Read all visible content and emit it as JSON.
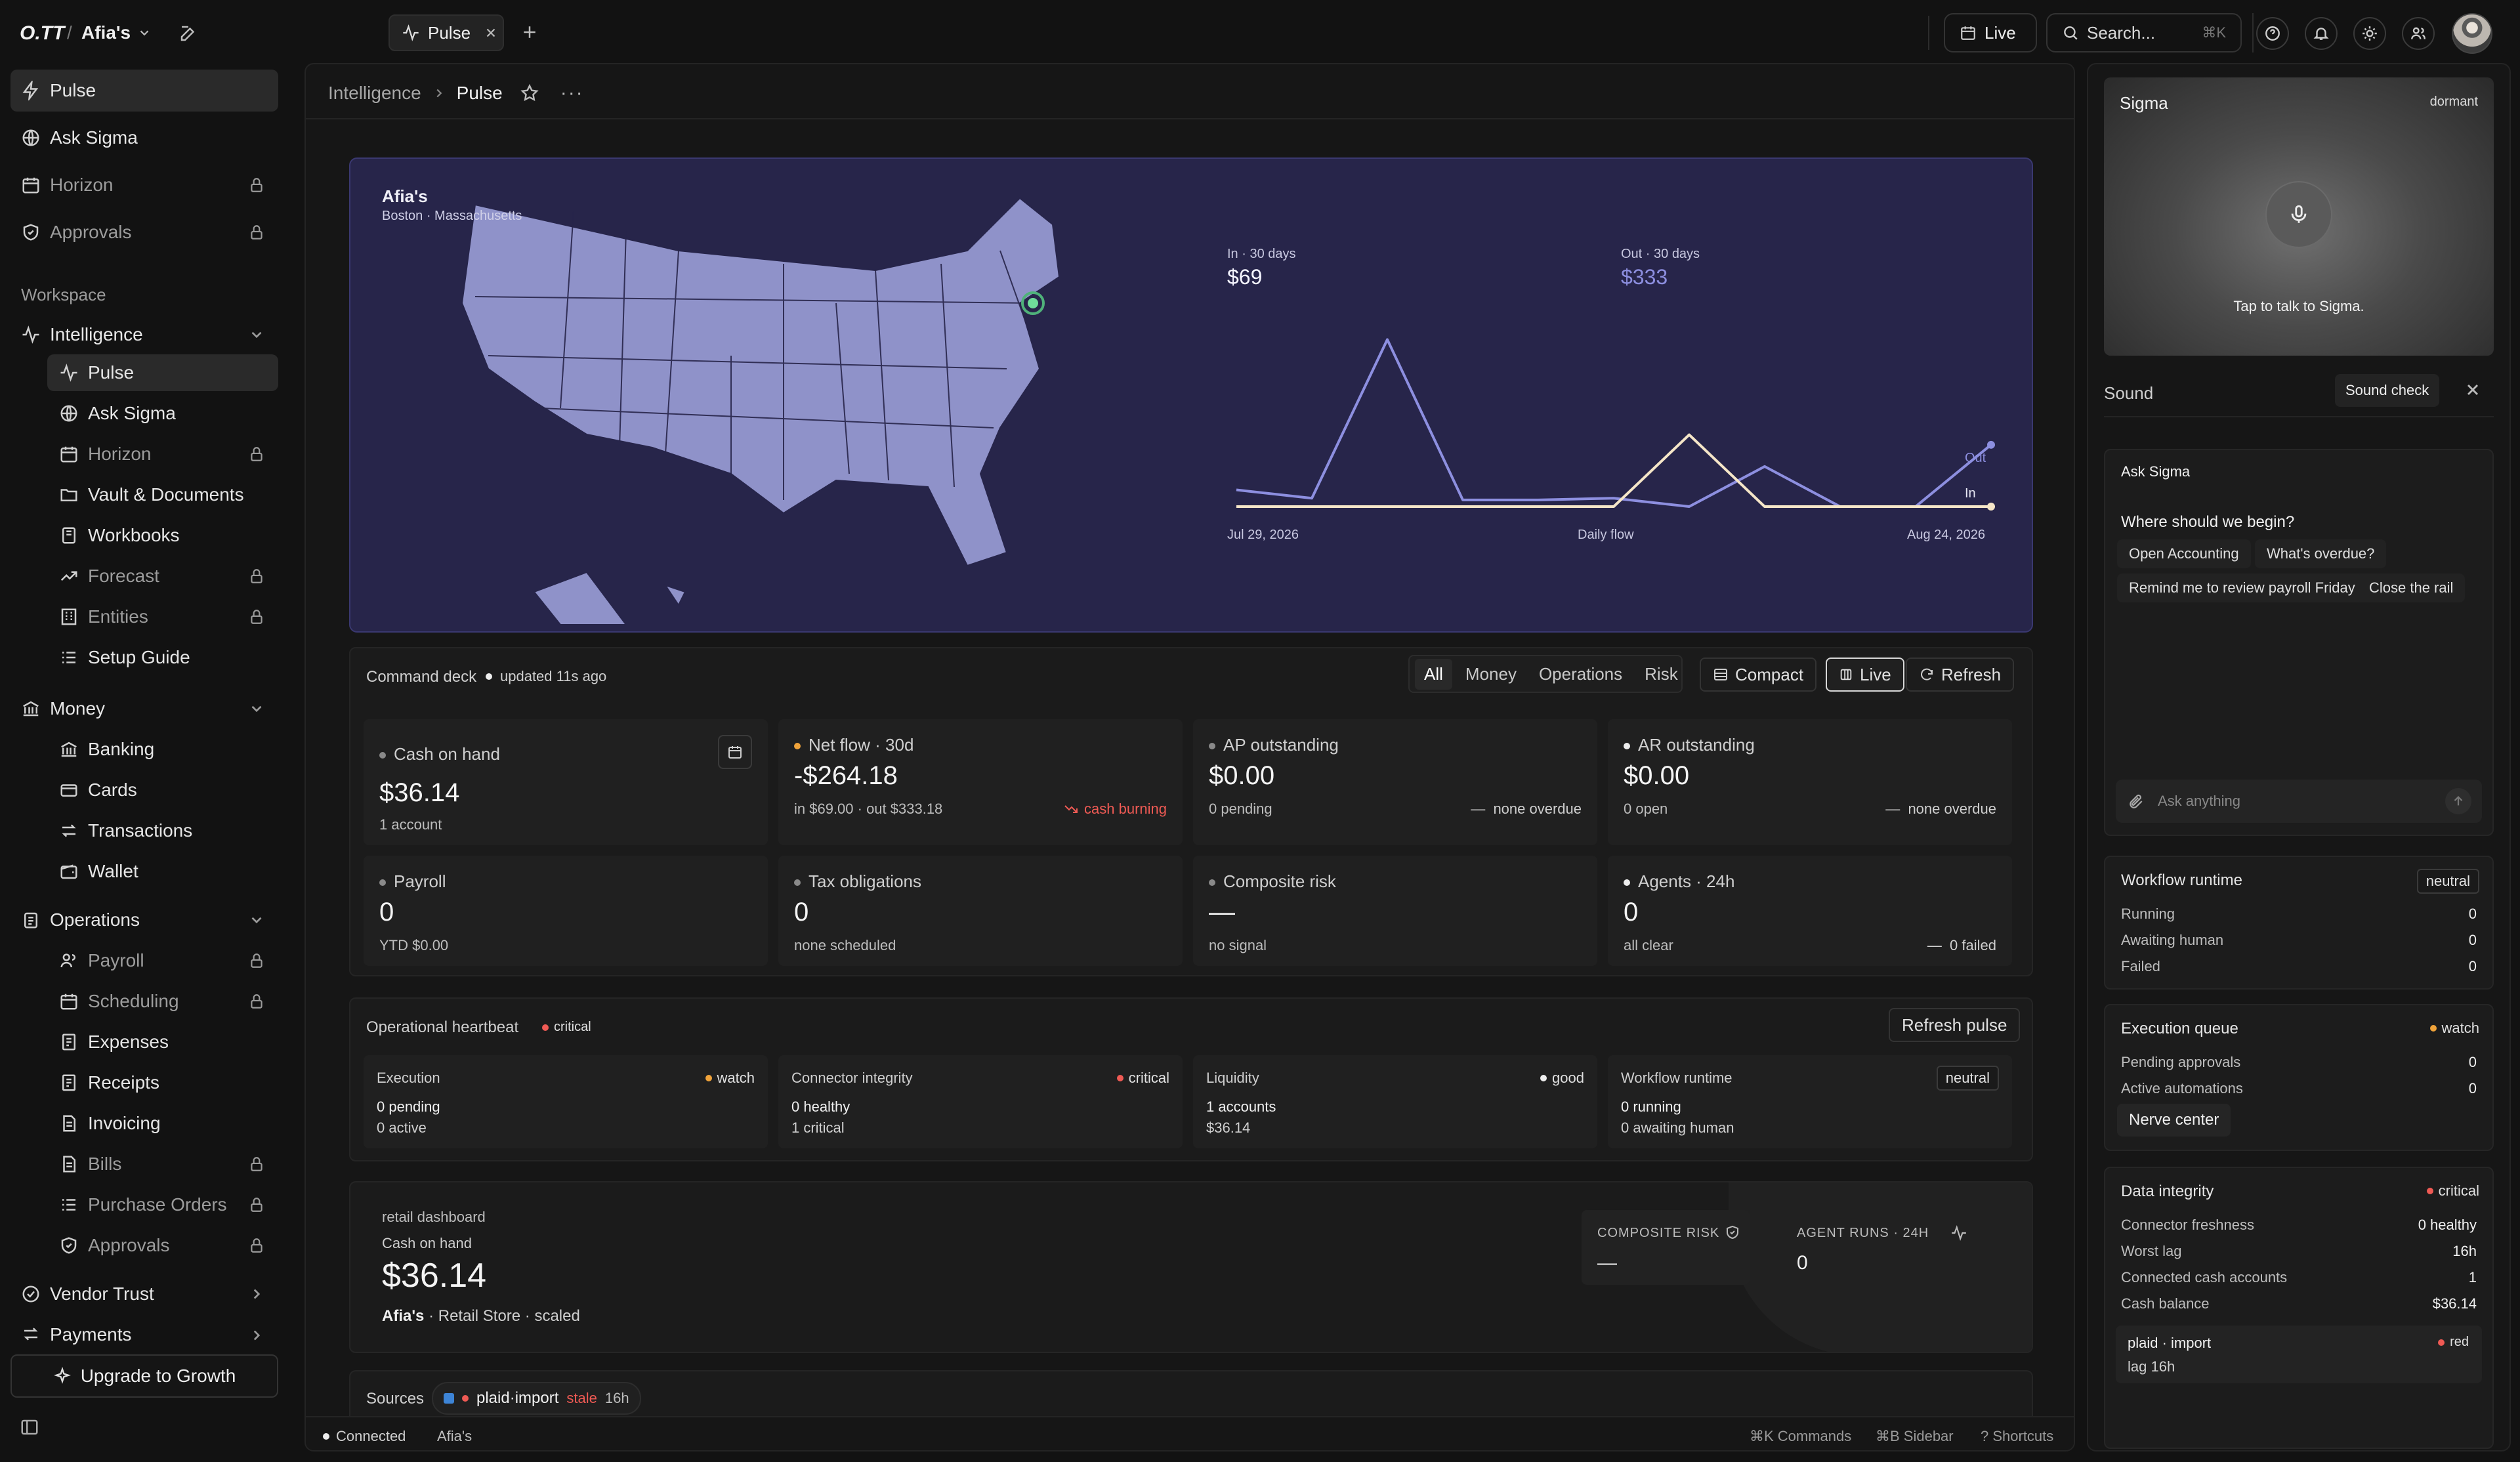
{
  "topbar": {
    "logo": "O.TT",
    "separator": "/",
    "workspace": "Afia's",
    "tab_label": "Pulse",
    "live_label": "Live",
    "search_placeholder": "Search...",
    "search_shortcut": "⌘K"
  },
  "sidebar": {
    "top_items": [
      {
        "label": "Pulse",
        "icon": "bolt-icon"
      },
      {
        "label": "Ask Sigma",
        "icon": "globe-icon"
      },
      {
        "label": "Horizon",
        "icon": "calendar-icon",
        "locked": true
      },
      {
        "label": "Approvals",
        "icon": "shield-icon",
        "locked": true
      }
    ],
    "workspace_label": "Workspace",
    "intelligence": {
      "label": "Intelligence",
      "items": [
        {
          "label": "Pulse"
        },
        {
          "label": "Ask Sigma"
        },
        {
          "label": "Horizon",
          "locked": true
        },
        {
          "label": "Vault & Documents"
        },
        {
          "label": "Workbooks"
        },
        {
          "label": "Forecast",
          "locked": true
        },
        {
          "label": "Entities",
          "locked": true
        },
        {
          "label": "Setup Guide"
        }
      ]
    },
    "money": {
      "label": "Money",
      "items": [
        {
          "label": "Banking"
        },
        {
          "label": "Cards"
        },
        {
          "label": "Transactions"
        },
        {
          "label": "Wallet"
        }
      ]
    },
    "operations": {
      "label": "Operations",
      "items": [
        {
          "label": "Payroll",
          "locked": true
        },
        {
          "label": "Scheduling",
          "locked": true
        },
        {
          "label": "Expenses"
        },
        {
          "label": "Receipts"
        },
        {
          "label": "Invoicing"
        },
        {
          "label": "Bills",
          "locked": true
        },
        {
          "label": "Purchase Orders",
          "locked": true
        },
        {
          "label": "Approvals",
          "locked": true
        }
      ]
    },
    "vendor_trust": "Vendor Trust",
    "payments": "Payments",
    "upgrade": "Upgrade to Growth"
  },
  "breadcrumb": {
    "parent": "Intelligence",
    "current": "Pulse"
  },
  "hero": {
    "name": "Afia's",
    "location": "Boston · Massachusetts",
    "in_label": "In · 30 days",
    "in_value": "$69",
    "out_label": "Out · 30 days",
    "out_value": "$333",
    "x_start": "Jul 29, 2026",
    "x_mid": "Daily flow",
    "x_end": "Aug 24, 2026",
    "series_out_label": "Out",
    "series_in_label": "In",
    "colors": {
      "bg": "#27254a",
      "map": "#8f92c9",
      "in": "#f5e6c8",
      "out": "#8d8fe0"
    }
  },
  "chart_data": {
    "type": "line",
    "title": "",
    "xlabel": "Daily flow",
    "ylabel": "",
    "x": [
      "Jul 29, 2026",
      "",
      "",
      "",
      "",
      "",
      "",
      "",
      "",
      "",
      "Aug 24, 2026"
    ],
    "series": [
      {
        "name": "Out",
        "values": [
          10,
          5,
          100,
          4,
          4,
          5,
          0,
          24,
          0,
          0,
          37
        ]
      },
      {
        "name": "In",
        "values": [
          0,
          0,
          0,
          0,
          0,
          0,
          43,
          0,
          0,
          0,
          0
        ]
      }
    ],
    "ylim": [
      0,
      110
    ],
    "grid": false,
    "legend": "inline labels at end of lines"
  },
  "command_deck": {
    "title": "Command deck",
    "updated": "updated 11s ago",
    "filters": [
      "All",
      "Money",
      "Operations",
      "Risk"
    ],
    "compact": "Compact",
    "live": "Live",
    "refresh": "Refresh",
    "kpis": [
      {
        "label": "Cash on hand",
        "value": "$36.14",
        "sub": "1 account"
      },
      {
        "label": "Net flow · 30d",
        "value": "-$264.18",
        "sub": "in $69.00 · out $333.18",
        "trend": "cash burning"
      },
      {
        "label": "AP outstanding",
        "value": "$0.00",
        "sub": "0 pending",
        "trend": "none overdue"
      },
      {
        "label": "AR outstanding",
        "value": "$0.00",
        "sub": "0 open",
        "trend": "none overdue"
      },
      {
        "label": "Payroll",
        "value": "0",
        "sub": "YTD $0.00"
      },
      {
        "label": "Tax obligations",
        "value": "0",
        "sub": "none scheduled"
      },
      {
        "label": "Composite risk",
        "value": "—",
        "sub": "no signal"
      },
      {
        "label": "Agents · 24h",
        "value": "0",
        "sub": "all clear",
        "trend": "0 failed"
      }
    ]
  },
  "heartbeat": {
    "title": "Operational heartbeat",
    "status": "critical",
    "refresh": "Refresh pulse",
    "cards": [
      {
        "label": "Execution",
        "status": "watch",
        "l1": "0 pending",
        "l2": "0 active"
      },
      {
        "label": "Connector integrity",
        "status": "critical",
        "l1": "0 healthy",
        "l2": "1 critical"
      },
      {
        "label": "Liquidity",
        "status": "good",
        "l1": "1 accounts",
        "l2": "$36.14"
      },
      {
        "label": "Workflow runtime",
        "status": "neutral",
        "l1": "0 running",
        "l2": "0 awaiting human"
      }
    ]
  },
  "retail": {
    "kicker": "retail dashboard",
    "label": "Cash on hand",
    "value": "$36.14",
    "name": "Afia's",
    "meta": "· Retail Store · scaled",
    "risk_label": "COMPOSITE RISK",
    "risk_value": "—",
    "runs_label": "AGENT RUNS · 24H",
    "runs_value": "0"
  },
  "sources": {
    "label": "Sources",
    "name": "plaid·import",
    "state": "stale",
    "age": "16h"
  },
  "footer": {
    "connected": "Connected",
    "name": "Afia's",
    "cmd": "⌘K Commands",
    "sidebar": "⌘B Sidebar",
    "shortcuts": "? Shortcuts"
  },
  "rail": {
    "sigma_title": "Sigma",
    "sigma_state": "dormant",
    "sigma_prompt": "Tap to talk to Sigma.",
    "sound": "Sound",
    "sound_check": "Sound check",
    "ask_title": "Ask Sigma",
    "ask_question": "Where should we begin?",
    "suggestions": [
      "Open Accounting",
      "What's overdue?",
      "Remind me to review payroll Friday",
      "Close the rail"
    ],
    "ask_placeholder": "Ask anything",
    "workflow": {
      "title": "Workflow runtime",
      "status": "neutral",
      "rows": [
        [
          "Running",
          "0"
        ],
        [
          "Awaiting human",
          "0"
        ],
        [
          "Failed",
          "0"
        ]
      ]
    },
    "queue": {
      "title": "Execution queue",
      "status": "watch",
      "rows": [
        [
          "Pending approvals",
          "0"
        ],
        [
          "Active automations",
          "0"
        ]
      ],
      "button": "Nerve center"
    },
    "integrity": {
      "title": "Data integrity",
      "status": "critical",
      "rows": [
        [
          "Connector freshness",
          "0 healthy"
        ],
        [
          "Worst lag",
          "16h"
        ],
        [
          "Connected cash accounts",
          "1"
        ],
        [
          "Cash balance",
          "$36.14"
        ]
      ],
      "source_name": "plaid · import",
      "source_status": "red",
      "source_lag": "lag 16h"
    }
  }
}
